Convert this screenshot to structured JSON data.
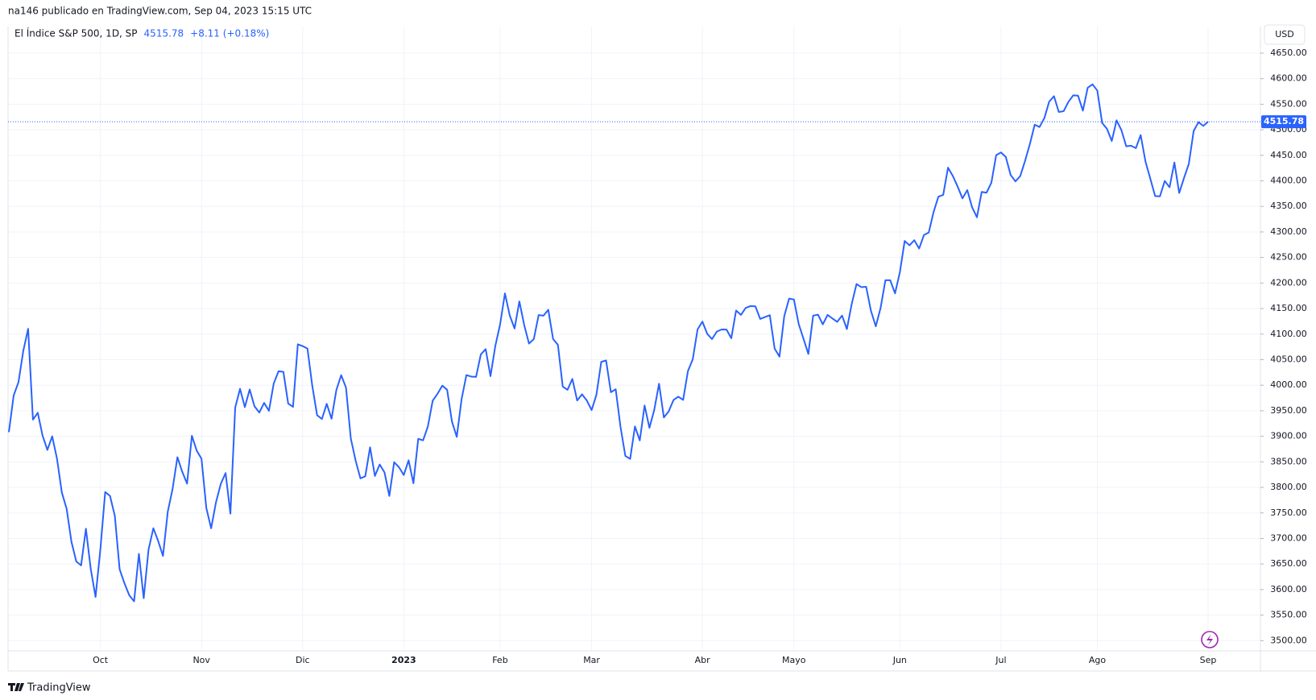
{
  "header": {
    "publisher": "na146 publicado en TradingView.com, Sep 04, 2023 15:15 UTC",
    "logo": "TradingView"
  },
  "chart_data": {
    "type": "line",
    "title": "El Índice S&P 500, 1D, SP",
    "change": "+8.11 (+0.18%)",
    "currency": "USD",
    "color": "#2962ff",
    "grid": true,
    "categories": [
      null,
      null,
      null,
      null,
      null,
      null,
      null,
      null,
      null,
      null,
      null,
      null,
      null,
      null,
      null,
      null,
      null,
      null,
      null,
      "Oct",
      null,
      null,
      null,
      null,
      null,
      null,
      null,
      null,
      null,
      null,
      null,
      null,
      null,
      null,
      null,
      null,
      null,
      null,
      null,
      null,
      "Nov",
      null,
      null,
      null,
      null,
      null,
      null,
      null,
      null,
      null,
      null,
      null,
      null,
      null,
      null,
      null,
      null,
      null,
      null,
      null,
      null,
      "Dic",
      null,
      null,
      null,
      null,
      null,
      null,
      null,
      null,
      null,
      null,
      null,
      null,
      null,
      null,
      null,
      null,
      null,
      null,
      null,
      null,
      "2023",
      null,
      null,
      null,
      null,
      null,
      null,
      null,
      null,
      null,
      null,
      null,
      null,
      null,
      null,
      null,
      null,
      null,
      null,
      null,
      "Feb",
      null,
      null,
      null,
      null,
      null,
      null,
      null,
      null,
      null,
      null,
      null,
      null,
      null,
      null,
      null,
      null,
      null,
      null,
      "Mar",
      null,
      null,
      null,
      null,
      null,
      null,
      null,
      null,
      null,
      null,
      null,
      null,
      null,
      null,
      null,
      null,
      null,
      null,
      null,
      null,
      null,
      null,
      "Abr",
      null,
      null,
      null,
      null,
      null,
      null,
      null,
      null,
      null,
      null,
      null,
      null,
      null,
      null,
      null,
      null,
      null,
      null,
      "Mayo",
      null,
      null,
      null,
      null,
      null,
      null,
      null,
      null,
      null,
      null,
      null,
      null,
      null,
      null,
      null,
      null,
      null,
      null,
      null,
      null,
      null,
      "Jun",
      null,
      null,
      null,
      null,
      null,
      null,
      null,
      null,
      null,
      null,
      null,
      null,
      null,
      null,
      null,
      null,
      null,
      null,
      null,
      null,
      "Jul",
      null,
      null,
      null,
      null,
      null,
      null,
      null,
      null,
      null,
      null,
      null,
      null,
      null,
      null,
      null,
      null,
      null,
      null,
      null,
      "Ago",
      null,
      null,
      null,
      null,
      null,
      null,
      null,
      null,
      null,
      null,
      null,
      null,
      null,
      null,
      null,
      null,
      null,
      null,
      null,
      null,
      null,
      null,
      "Sep"
    ],
    "values": [
      3908.19,
      3979.87,
      4006.18,
      4067.36,
      4110.41,
      3932.69,
      3946.01,
      3901.35,
      3873.33,
      3899.89,
      3855.93,
      3789.93,
      3757.99,
      3693.23,
      3655.04,
      3647.29,
      3719.04,
      3640.47,
      3585.62,
      3678.43,
      3790.93,
      3783.28,
      3744.52,
      3639.66,
      3612.39,
      3588.84,
      3577.03,
      3669.91,
      3583.07,
      3677.95,
      3719.98,
      3695.16,
      3665.78,
      3752.75,
      3797.34,
      3859.11,
      3830.6,
      3807.3,
      3901.06,
      3871.98,
      3856.1,
      3759.69,
      3719.89,
      3770.55,
      3806.8,
      3828.11,
      3748.57,
      3956.37,
      3992.93,
      3957.25,
      3991.73,
      3958.79,
      3946.56,
      3965.34,
      3949.94,
      4003.58,
      4027.26,
      4026.12,
      3963.94,
      3957.63,
      4080.11,
      4076.57,
      4071.7,
      3998.84,
      3941.26,
      3933.92,
      3963.51,
      3934.38,
      3990.56,
      4019.65,
      3995.32,
      3895.75,
      3852.36,
      3817.66,
      3821.62,
      3878.44,
      3822.39,
      3844.82,
      3829.25,
      3783.22,
      3849.28,
      3839.5,
      3824.14,
      3852.97,
      3808.1,
      3895.08,
      3892.09,
      3919.25,
      3969.61,
      3983.17,
      3999.09,
      3990.97,
      3928.86,
      3898.85,
      3972.61,
      4019.81,
      4016.95,
      4016.22,
      4060.43,
      4070.56,
      4017.77,
      4076.6,
      4119.21,
      4179.76,
      4136.48,
      4111.08,
      4164.0,
      4117.86,
      4081.5,
      4090.46,
      4137.29,
      4136.13,
      4147.6,
      4090.41,
      4079.09,
      3997.34,
      3991.05,
      4012.32,
      3970.04,
      3982.24,
      3970.15,
      3951.39,
      3981.35,
      4045.64,
      4048.42,
      3986.37,
      3992.01,
      3918.32,
      3861.59,
      3855.76,
      3919.29,
      3891.93,
      3960.28,
      3916.64,
      3951.57,
      4002.87,
      3936.97,
      3948.72,
      3970.99,
      3977.53,
      3971.27,
      4027.81,
      4050.83,
      4109.31,
      4124.51,
      4100.6,
      4090.38,
      4105.02,
      4109.11,
      4108.94,
      4091.95,
      4146.22,
      4137.64,
      4151.32,
      4154.87,
      4154.52,
      4129.79,
      4133.52,
      4137.04,
      4071.63,
      4055.99,
      4135.35,
      4169.48,
      4167.87,
      4119.58,
      4090.75,
      4061.22,
      4136.25,
      4138.12,
      4119.17,
      4137.64,
      4130.62,
      4124.08,
      4136.28,
      4109.9,
      4158.77,
      4198.05,
      4191.98,
      4192.63,
      4145.58,
      4115.24,
      4151.28,
      4205.45,
      4205.52,
      4179.83,
      4221.02,
      4282.37,
      4273.79,
      4283.85,
      4267.52,
      4293.93,
      4298.86,
      4338.93,
      4369.01,
      4372.59,
      4425.84,
      4409.59,
      4388.71,
      4365.69,
      4381.89,
      4348.33,
      4328.82,
      4378.41,
      4376.86,
      4396.44,
      4450.38,
      4455.59,
      4446.82,
      4411.59,
      4398.95,
      4409.53,
      4439.26,
      4472.16,
      4510.04,
      4505.42,
      4522.79,
      4554.98,
      4565.72,
      4534.87,
      4536.34,
      4554.64,
      4567.46,
      4566.75,
      4537.41,
      4582.23,
      4588.96,
      4576.73,
      4513.39,
      4501.89,
      4478.03,
      4518.44,
      4499.38,
      4467.71,
      4468.83,
      4464.05,
      4489.72,
      4437.86,
      4404.33,
      4370.36,
      4369.71,
      4399.77,
      4387.55,
      4436.01,
      4376.31,
      4405.71,
      4433.31,
      4497.63,
      4514.87,
      4507.66,
      4515.78
    ],
    "ylim": [
      3480,
      4702
    ],
    "yticks": [
      {
        "value": 3500,
        "label": "3500.00"
      },
      {
        "value": 3550,
        "label": "3550.00"
      },
      {
        "value": 3600,
        "label": "3600.00"
      },
      {
        "value": 3650,
        "label": "3650.00"
      },
      {
        "value": 3700,
        "label": "3700.00"
      },
      {
        "value": 3750,
        "label": "3750.00"
      },
      {
        "value": 3800,
        "label": "3800.00"
      },
      {
        "value": 3850,
        "label": "3850.00"
      },
      {
        "value": 3900,
        "label": "3900.00"
      },
      {
        "value": 3950,
        "label": "3950.00"
      },
      {
        "value": 4000,
        "label": "4000.00"
      },
      {
        "value": 4050,
        "label": "4050.00"
      },
      {
        "value": 4100,
        "label": "4100.00"
      },
      {
        "value": 4150,
        "label": "4150.00"
      },
      {
        "value": 4200,
        "label": "4200.00"
      },
      {
        "value": 4250,
        "label": "4250.00"
      },
      {
        "value": 4300,
        "label": "4300.00"
      },
      {
        "value": 4350,
        "label": "4350.00"
      },
      {
        "value": 4400,
        "label": "4400.00"
      },
      {
        "value": 4450,
        "label": "4450.00"
      },
      {
        "value": 4500,
        "label": "4500.00"
      },
      {
        "value": 4550,
        "label": "4550.00"
      },
      {
        "value": 4600,
        "label": "4600.00"
      },
      {
        "value": 4650,
        "label": "4650.00"
      }
    ]
  }
}
